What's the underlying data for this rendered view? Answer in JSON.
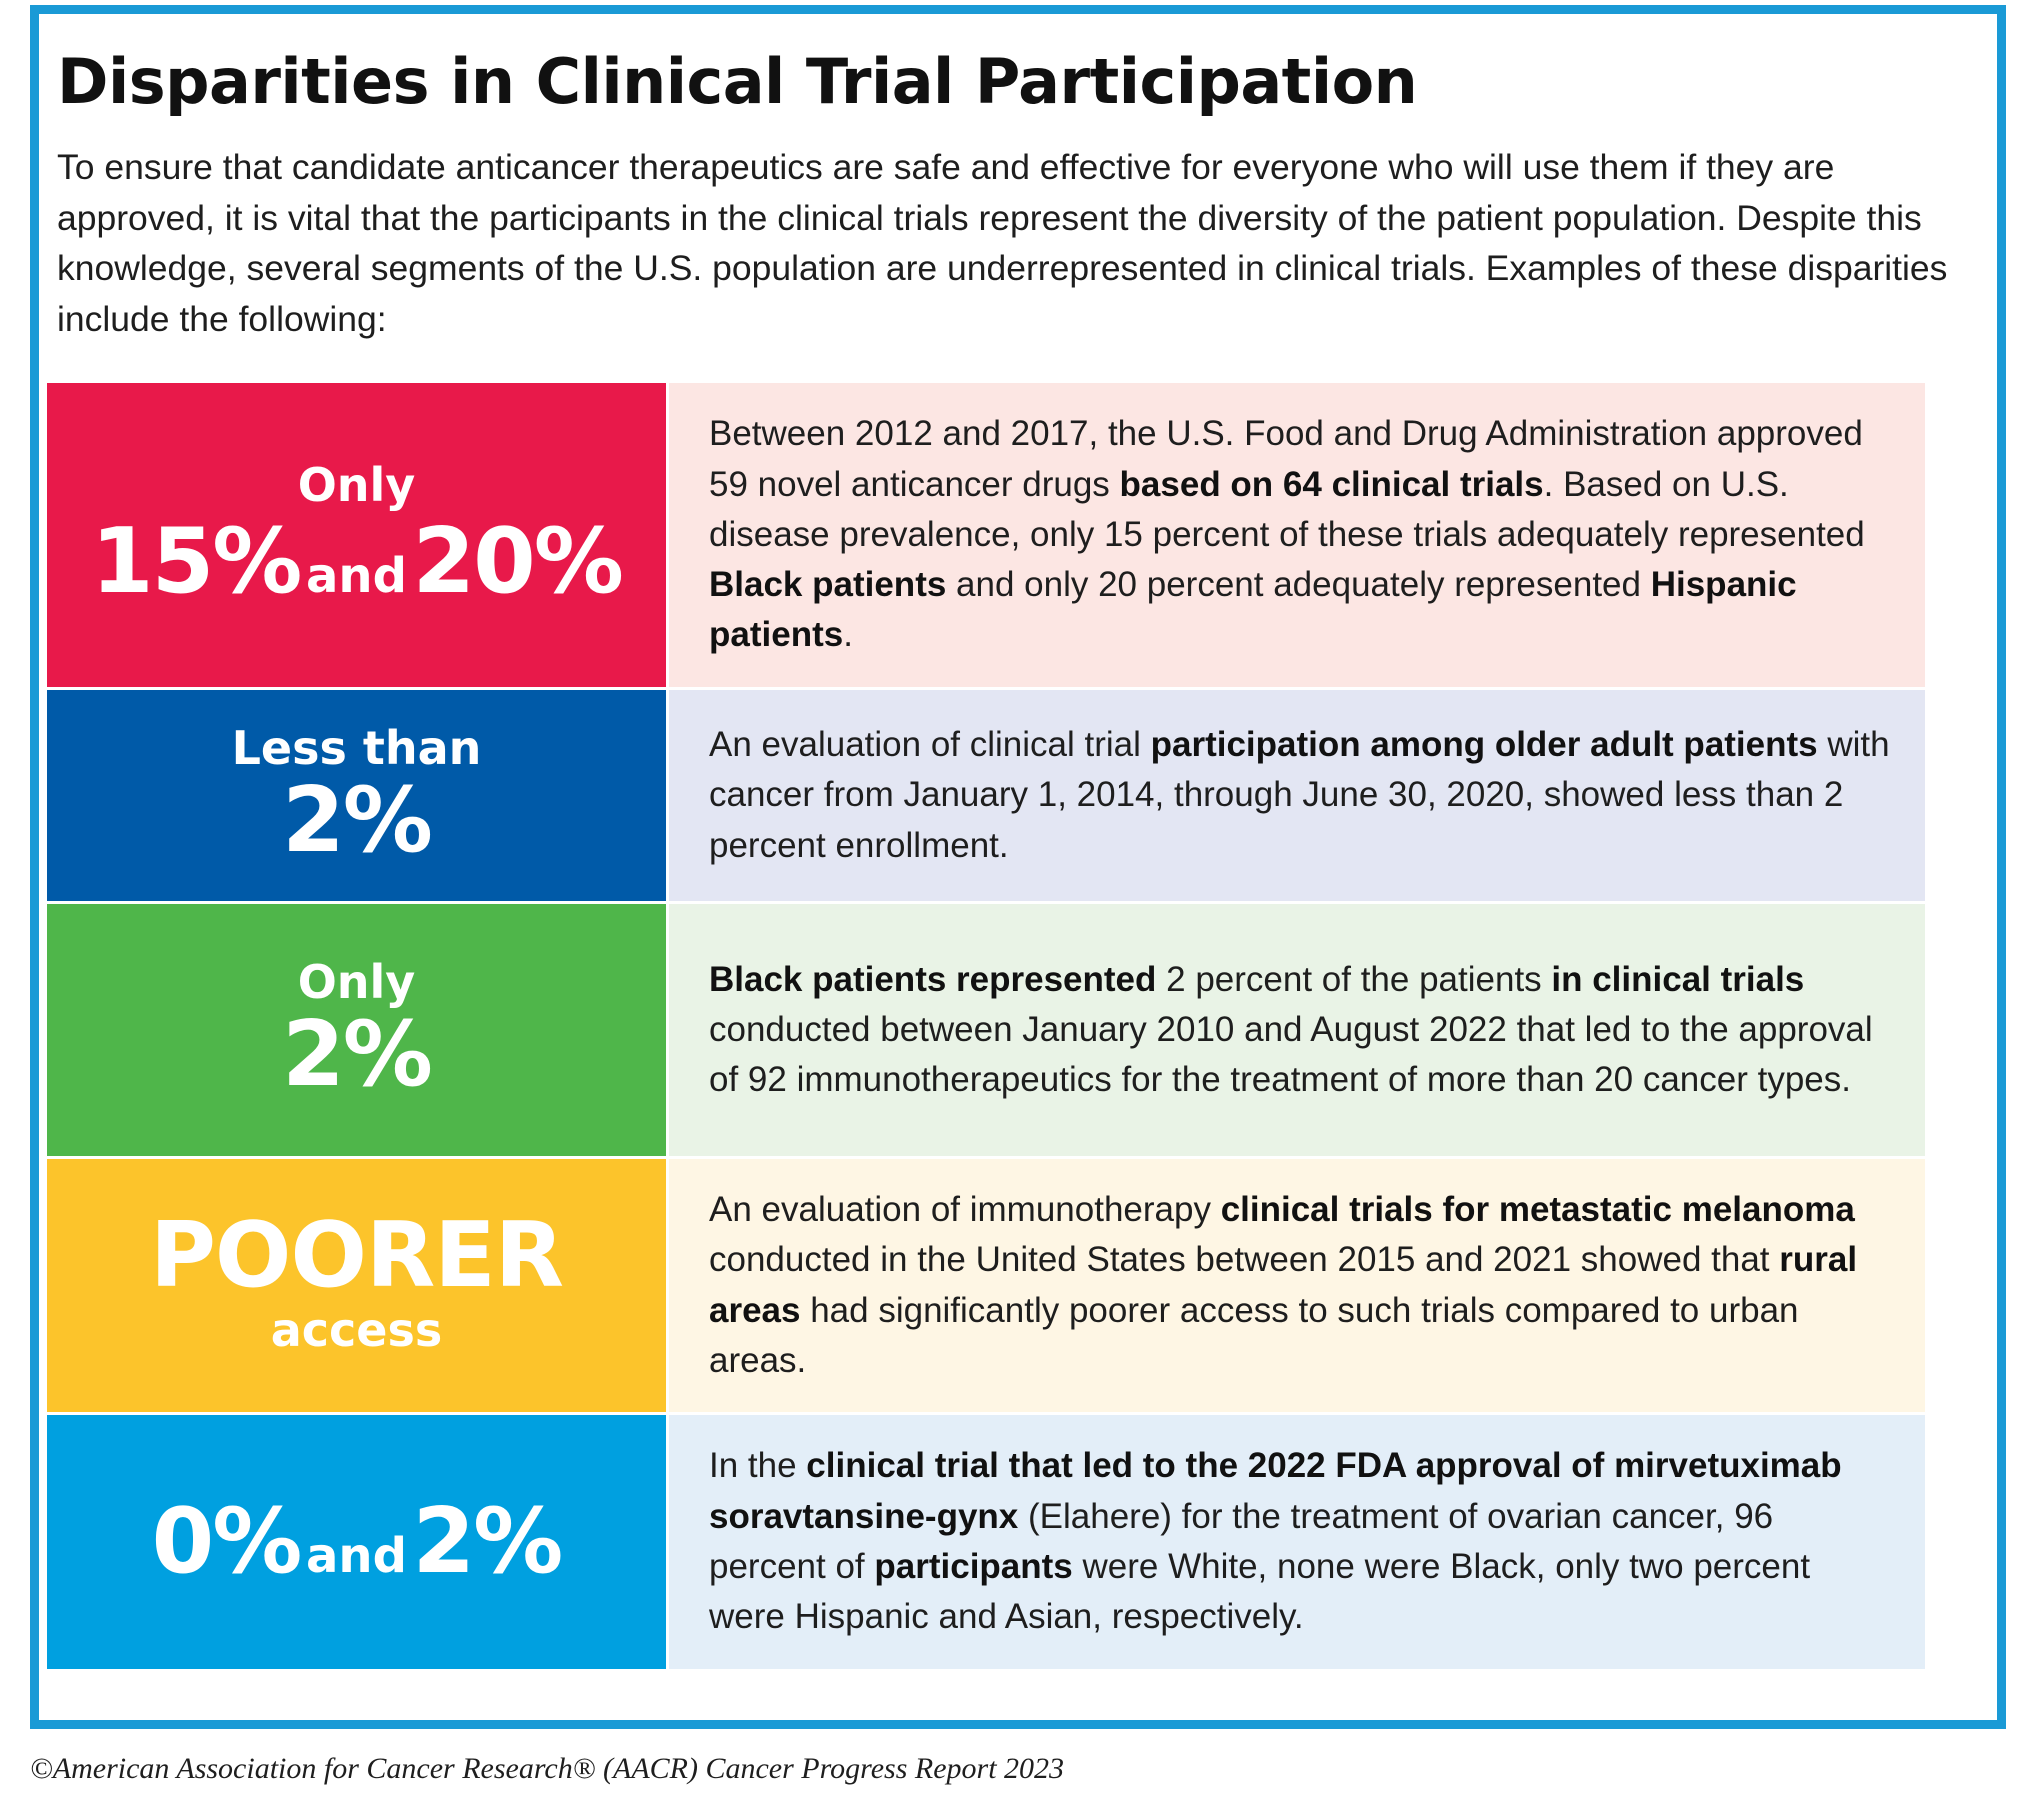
{
  "title": "Disparities in Clinical Trial Participation",
  "intro": "To ensure that candidate anticancer therapeutics are safe and effective for everyone who will use them if they are approved, it is vital that the participants in the clinical trials represent the diversity of the patient population. Despite this knowledge, several segments of the U.S. population are underrepresented in clinical trials. Examples of these disparities include the following:",
  "colors": {
    "frame": "#1a9ad6",
    "red": "#e8194a",
    "navy": "#005aa8",
    "green": "#4fb64a",
    "yellow": "#fcc42b",
    "cyan": "#00a0e0"
  },
  "rows": [
    {
      "stat_top": "Only",
      "stat_a": "15%",
      "stat_and": "and",
      "stat_b": "20%",
      "desc": [
        "Between 2012 and 2017, the U.S. Food and Drug Administration approved 59 novel anticancer drugs ",
        "based on 64 clinical trials",
        ". Based on U.S. disease prevalence, only 15 percent of these trials adequately represented ",
        "Black patients",
        " and only 20 percent adequately represented ",
        "Hispanic patients",
        "."
      ]
    },
    {
      "stat_top": "Less than",
      "stat_big": "2%",
      "desc": [
        "An evaluation of clinical trial ",
        "participation among older adult patients",
        " with cancer from January 1, 2014, through June 30, 2020, showed less than 2 percent enrollment."
      ]
    },
    {
      "stat_top": "Only",
      "stat_big": "2%",
      "desc": [
        "Black patients represented",
        " 2 percent of the patients ",
        "in clinical trials",
        " conducted between January 2010 and August 2022 that led to the approval of 92 immunotherapeutics for the treatment of more than 20 cancer types."
      ]
    },
    {
      "stat_big": "POORER",
      "stat_bottom": "access",
      "desc": [
        "An evaluation of immunotherapy ",
        "clinical trials for metastatic melanoma",
        " conducted in the United States between 2015 and 2021 showed that ",
        "rural areas",
        " had significantly poorer access to such trials compared to urban areas."
      ]
    },
    {
      "stat_a": "0%",
      "stat_and": "and",
      "stat_b": "2%",
      "desc": [
        "In the ",
        "clinical trial that led to the 2022 FDA approval of mirvetuximab soravtansine-gynx",
        " (Elahere) for the treatment of ovarian cancer, 96 percent of ",
        "participants",
        " were White, none were Black, only two percent were Hispanic and Asian, respectively."
      ]
    }
  ],
  "footer": "©American Association for Cancer Research® (AACR) Cancer Progress Report 2023"
}
